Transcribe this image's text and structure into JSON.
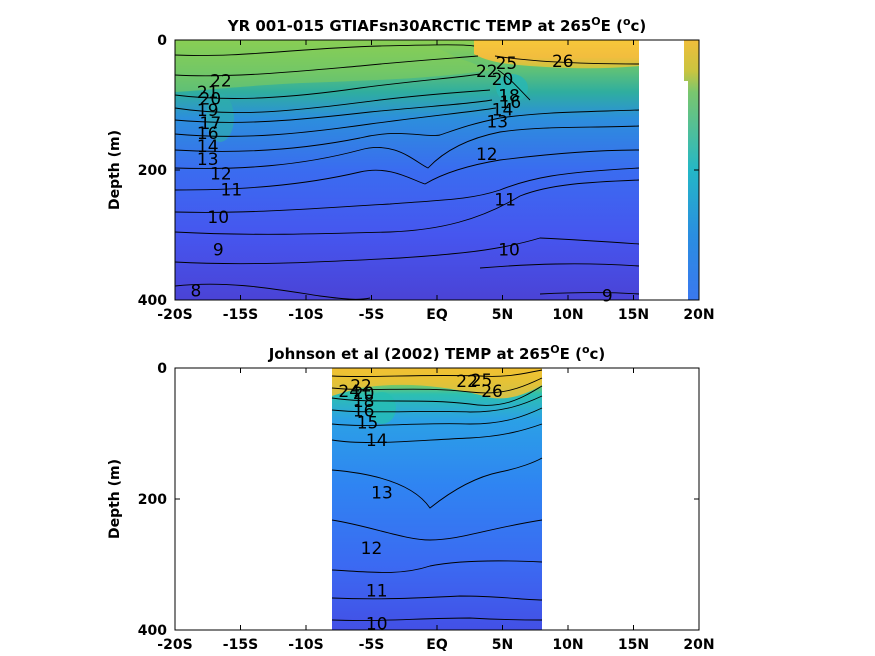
{
  "chart_data": [
    {
      "type": "contour",
      "title_prefix": "YR 001-015 GTIAFsn30ARCTIC TEMP at 265",
      "title_sup": "O",
      "title_mid": "E (",
      "title_unit_sup": "o",
      "title_suffix": "c)",
      "ylabel": "Depth (m)",
      "xlabel": "",
      "x_ticks": [
        "-20S",
        "-15S",
        "-10S",
        "-5S",
        "EQ",
        "5N",
        "10N",
        "15N",
        "20N"
      ],
      "x_tick_values": [
        -20,
        -15,
        -10,
        -5,
        0,
        5,
        10,
        15,
        20
      ],
      "y_ticks": [
        "0",
        "200",
        "400"
      ],
      "y_tick_values": [
        0,
        200,
        400
      ],
      "xlim": [
        -20,
        20
      ],
      "ylim": [
        400,
        0
      ],
      "data_extent": {
        "lat": [
          -20,
          15.3
        ],
        "depth": [
          0,
          400
        ]
      },
      "contour_labels": [
        {
          "text": "22",
          "lat": -16.5,
          "depth": 62
        },
        {
          "text": "21",
          "lat": -17.5,
          "depth": 80
        },
        {
          "text": "20",
          "lat": -17.3,
          "depth": 90
        },
        {
          "text": "19",
          "lat": -17.5,
          "depth": 108
        },
        {
          "text": "17",
          "lat": -17.3,
          "depth": 128
        },
        {
          "text": "16",
          "lat": -17.5,
          "depth": 143
        },
        {
          "text": "14",
          "lat": -17.5,
          "depth": 163
        },
        {
          "text": "13",
          "lat": -17.5,
          "depth": 183
        },
        {
          "text": "12",
          "lat": -16.5,
          "depth": 205
        },
        {
          "text": "11",
          "lat": -15.7,
          "depth": 230
        },
        {
          "text": "10",
          "lat": -16.7,
          "depth": 272
        },
        {
          "text": "9",
          "lat": -16.7,
          "depth": 322
        },
        {
          "text": "8",
          "lat": -18.4,
          "depth": 385
        },
        {
          "text": "25",
          "lat": 5.3,
          "depth": 35
        },
        {
          "text": "26",
          "lat": 9.6,
          "depth": 32
        },
        {
          "text": "22",
          "lat": 3.8,
          "depth": 48
        },
        {
          "text": "20",
          "lat": 5.0,
          "depth": 60
        },
        {
          "text": "18",
          "lat": 5.5,
          "depth": 85
        },
        {
          "text": "16",
          "lat": 5.6,
          "depth": 95
        },
        {
          "text": "14",
          "lat": 5.0,
          "depth": 107
        },
        {
          "text": "13",
          "lat": 4.6,
          "depth": 125
        },
        {
          "text": "12",
          "lat": 3.8,
          "depth": 175
        },
        {
          "text": "11",
          "lat": 5.2,
          "depth": 245
        },
        {
          "text": "10",
          "lat": 5.5,
          "depth": 322
        },
        {
          "text": "9",
          "lat": 13.0,
          "depth": 393
        }
      ]
    },
    {
      "type": "contour",
      "title_prefix": "Johnson et al (2002) TEMP at 265",
      "title_sup": "O",
      "title_mid": "E (",
      "title_unit_sup": "o",
      "title_suffix": "c)",
      "ylabel": "Depth (m)",
      "xlabel": "",
      "x_ticks": [
        "-20S",
        "-15S",
        "-10S",
        "-5S",
        "EQ",
        "5N",
        "10N",
        "15N",
        "20N"
      ],
      "x_tick_values": [
        -20,
        -15,
        -10,
        -5,
        0,
        5,
        10,
        15,
        20
      ],
      "y_ticks": [
        "0",
        "200",
        "400"
      ],
      "y_tick_values": [
        0,
        200,
        400
      ],
      "xlim": [
        -20,
        20
      ],
      "ylim": [
        400,
        0
      ],
      "data_extent": {
        "lat": [
          -8,
          8
        ],
        "depth": [
          0,
          400
        ]
      },
      "contour_labels": [
        {
          "text": "24",
          "lat": -6.7,
          "depth": 35
        },
        {
          "text": "22",
          "lat": -5.8,
          "depth": 27
        },
        {
          "text": "20",
          "lat": -5.6,
          "depth": 38
        },
        {
          "text": "18",
          "lat": -5.6,
          "depth": 50
        },
        {
          "text": "16",
          "lat": -5.6,
          "depth": 65
        },
        {
          "text": "15",
          "lat": -5.3,
          "depth": 83
        },
        {
          "text": "14",
          "lat": -4.6,
          "depth": 110
        },
        {
          "text": "13",
          "lat": -4.2,
          "depth": 190
        },
        {
          "text": "12",
          "lat": -5.0,
          "depth": 275
        },
        {
          "text": "11",
          "lat": -4.6,
          "depth": 340
        },
        {
          "text": "10",
          "lat": -4.6,
          "depth": 390
        },
        {
          "text": "22",
          "lat": 2.3,
          "depth": 20
        },
        {
          "text": "25",
          "lat": 3.4,
          "depth": 18
        },
        {
          "text": "26",
          "lat": 4.2,
          "depth": 35
        }
      ]
    }
  ]
}
